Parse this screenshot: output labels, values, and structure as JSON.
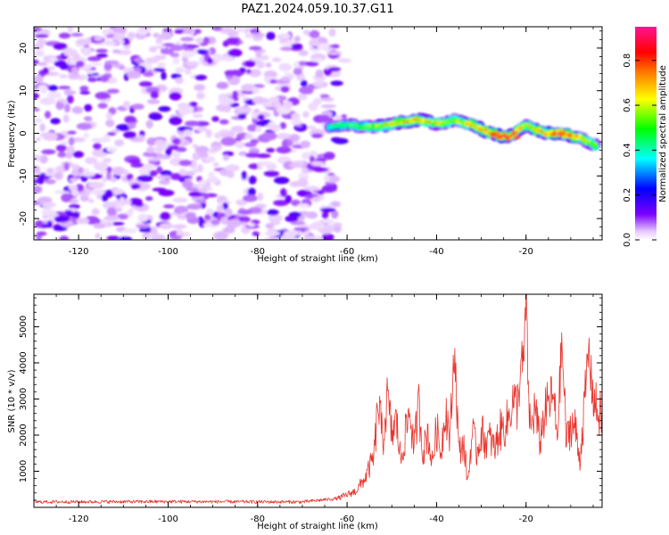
{
  "title": "PAZ1.2024.059.10.37.G11",
  "chart_data": [
    {
      "type": "heatmap",
      "xlabel": "Height of straight line (km)",
      "ylabel": "Frequency (Hz)",
      "xlim": [
        -130,
        -3
      ],
      "ylim": [
        -25,
        25
      ],
      "xticks": [
        -120,
        -100,
        -80,
        -60,
        -40,
        -20
      ],
      "yticks": [
        -20,
        -10,
        0,
        10,
        20
      ],
      "colorbar": {
        "label": "Normalized spectral amplitude",
        "range": [
          0,
          0.95
        ],
        "ticks": [
          "0.0",
          "0.2",
          "0.4",
          "0.6",
          "0.8"
        ],
        "colors": [
          "#ffffff",
          "#7b00ff",
          "#0000ff",
          "#00ffff",
          "#00ff00",
          "#ffff00",
          "#ff8000",
          "#ff0000",
          "#ff1493"
        ]
      },
      "noise_region_x": [
        -130,
        -62
      ],
      "ridge": {
        "x": [
          -64,
          -60,
          -56,
          -52,
          -48,
          -44,
          -40,
          -36,
          -32,
          -28,
          -24,
          -20,
          -16,
          -12,
          -8,
          -4
        ],
        "freq": [
          1.5,
          2,
          1.5,
          1.8,
          2.5,
          3.2,
          2.3,
          3,
          2,
          0,
          -1,
          2,
          0,
          0,
          -1,
          -3
        ],
        "amplitude": [
          0.3,
          0.35,
          0.4,
          0.5,
          0.55,
          0.6,
          0.5,
          0.45,
          0.6,
          0.7,
          0.8,
          0.5,
          0.6,
          0.8,
          0.55,
          0.45
        ]
      }
    },
    {
      "type": "line",
      "xlabel": "Height of straight line (km)",
      "ylabel": "SNR (10 * v/v)",
      "xlim": [
        -130,
        -3
      ],
      "ylim": [
        0,
        5900
      ],
      "xticks": [
        -120,
        -100,
        -80,
        -60,
        -40,
        -20
      ],
      "yticks": [
        1000,
        2000,
        3000,
        4000,
        5000
      ],
      "color": "#e8332c",
      "x": [
        -130,
        -100,
        -70,
        -62,
        -58,
        -56,
        -54,
        -53,
        -52,
        -51,
        -50,
        -49,
        -48,
        -46,
        -45,
        -44,
        -43,
        -42,
        -41,
        -40,
        -39,
        -38,
        -37,
        -36,
        -35,
        -34,
        -33,
        -32,
        -31,
        -30,
        -29,
        -28,
        -27,
        -26,
        -25,
        -24,
        -23,
        -22,
        -21,
        -20.5,
        -20,
        -19.5,
        -19,
        -18,
        -17,
        -16,
        -15,
        -14,
        -13,
        -12,
        -11,
        -10,
        -9,
        -8,
        -7,
        -6,
        -5.5,
        -5,
        -4,
        -3
      ],
      "y": [
        150,
        160,
        150,
        250,
        450,
        800,
        1400,
        2900,
        1800,
        3050,
        2000,
        2400,
        1300,
        2700,
        1600,
        2900,
        1500,
        2100,
        1200,
        2200,
        1500,
        2800,
        1900,
        4500,
        1500,
        1800,
        700,
        2100,
        1500,
        2100,
        1800,
        1900,
        1600,
        2100,
        2200,
        2400,
        3000,
        2800,
        4000,
        3900,
        5900,
        3300,
        2100,
        2800,
        1800,
        2500,
        2900,
        3100,
        2000,
        4600,
        1800,
        2300,
        2200,
        1300,
        2700,
        4400,
        3600,
        3100,
        2600,
        2500
      ]
    }
  ]
}
